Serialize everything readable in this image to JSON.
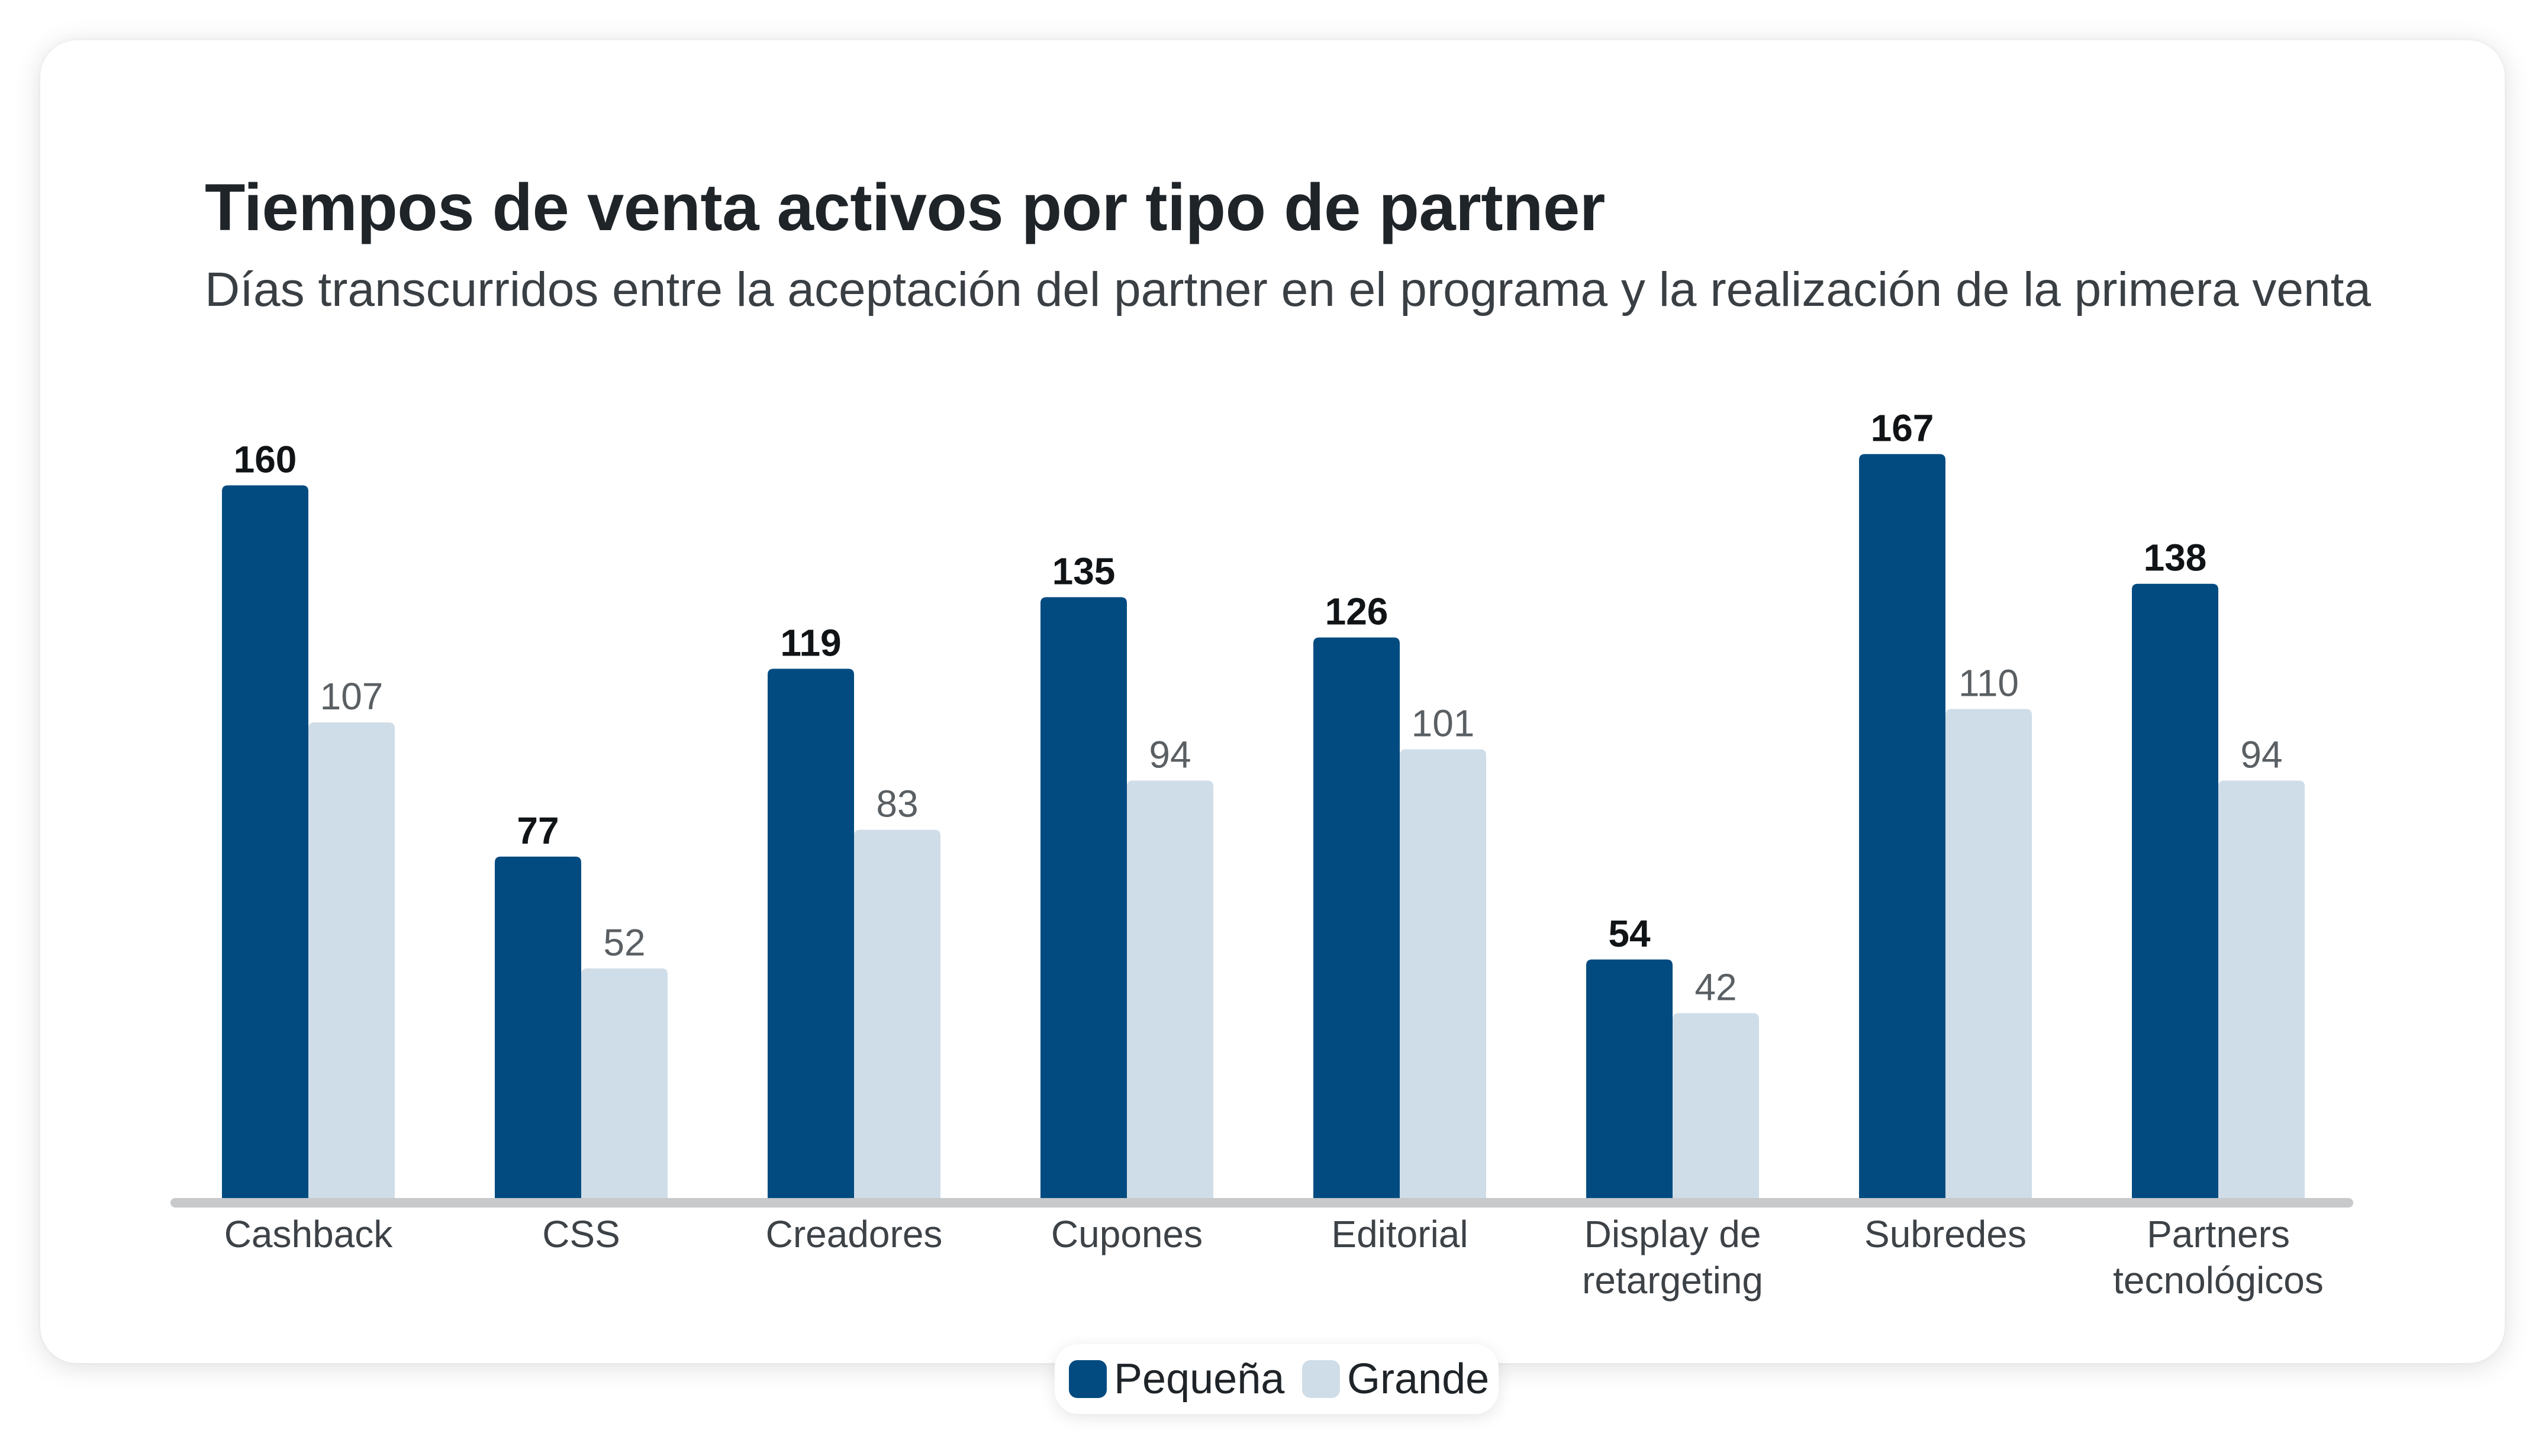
{
  "chart_data": {
    "type": "bar",
    "title": "Tiempos de venta activos por tipo de partner",
    "subtitle": "Días transcurridos entre la aceptación del partner en el programa y la realización de la primera venta",
    "categories": [
      [
        "Cashback"
      ],
      [
        "CSS"
      ],
      [
        "Creadores"
      ],
      [
        "Cupones"
      ],
      [
        "Editorial"
      ],
      [
        "Display de",
        "retargeting"
      ],
      [
        "Subredes"
      ],
      [
        "Partners",
        "tecnológicos"
      ]
    ],
    "series": [
      {
        "name": "Pequeña",
        "color": "#024b80",
        "values": [
          160,
          77,
          119,
          135,
          126,
          54,
          167,
          138
        ]
      },
      {
        "name": "Grande",
        "color": "#cfdde8",
        "values": [
          107,
          52,
          83,
          94,
          101,
          42,
          110,
          94
        ]
      }
    ],
    "ylim": [
      0,
      180
    ],
    "axis_color": "#c7c9cb",
    "grid": false,
    "data_labels": true,
    "legend_position": "bottom-center"
  }
}
